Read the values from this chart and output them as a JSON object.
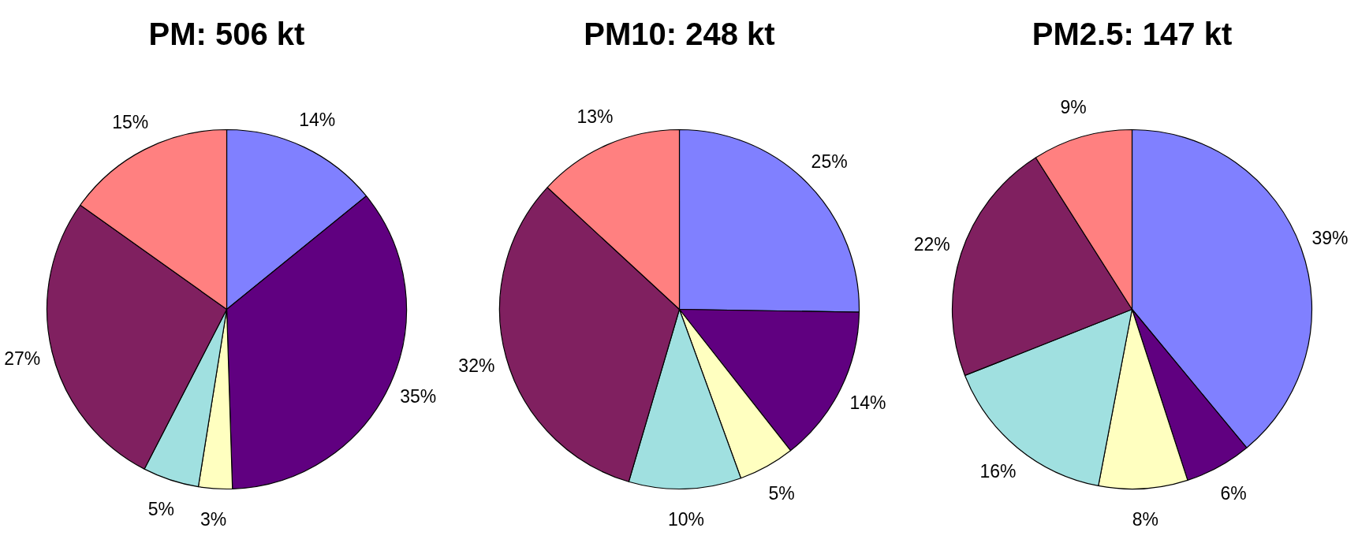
{
  "chart_data": [
    {
      "type": "pie",
      "title": "PM: 506 kt",
      "categories": [
        null,
        null,
        null,
        null,
        null,
        null
      ],
      "values": [
        14,
        35,
        3,
        5,
        27,
        15
      ],
      "value_labels": [
        "14%",
        "35%",
        "3%",
        "5%",
        "27%",
        "15%"
      ],
      "colors": [
        "#8080ff",
        "#600080",
        "#ffffc0",
        "#a0e0e0",
        "#802060",
        "#ff8080"
      ]
    },
    {
      "type": "pie",
      "title": "PM10: 248 kt",
      "categories": [
        null,
        null,
        null,
        null,
        null,
        null
      ],
      "values": [
        25,
        14,
        5,
        10,
        32,
        13
      ],
      "value_labels": [
        "25%",
        "14%",
        "5%",
        "10%",
        "32%",
        "13%"
      ],
      "colors": [
        "#8080ff",
        "#600080",
        "#ffffc0",
        "#a0e0e0",
        "#802060",
        "#ff8080"
      ]
    },
    {
      "type": "pie",
      "title": "PM2.5: 147 kt",
      "categories": [
        null,
        null,
        null,
        null,
        null,
        null
      ],
      "values": [
        39,
        6,
        8,
        16,
        22,
        9
      ],
      "value_labels": [
        "39%",
        "6%",
        "8%",
        "16%",
        "22%",
        "9%"
      ],
      "colors": [
        "#8080ff",
        "#600080",
        "#ffffc0",
        "#a0e0e0",
        "#802060",
        "#ff8080"
      ]
    }
  ]
}
